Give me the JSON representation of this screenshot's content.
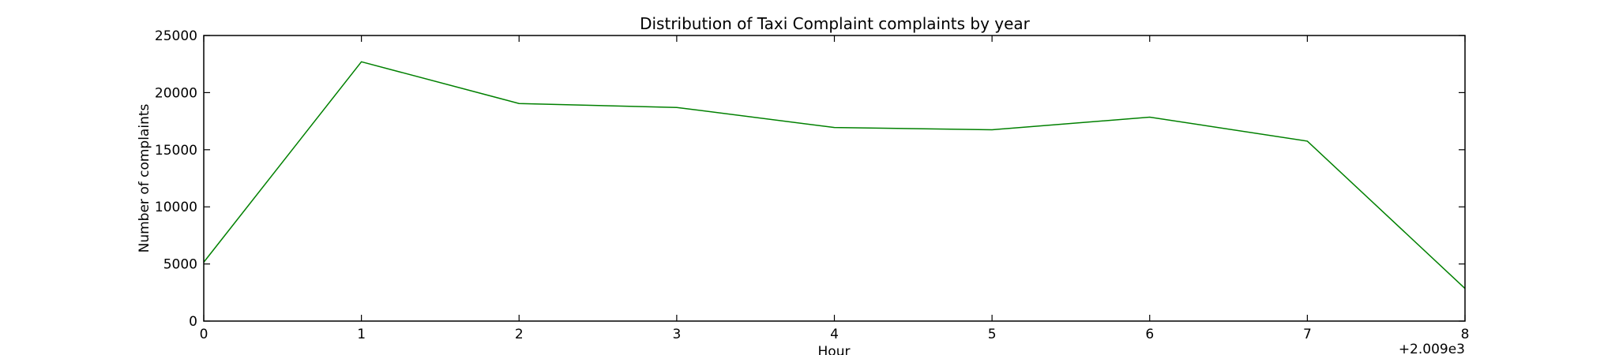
{
  "chart_data": {
    "type": "line",
    "title": "Distribution of  Taxi Complaint complaints by year",
    "xlabel": "Hour",
    "ylabel": "Number of complaints",
    "x_offset_label": "+2.009e3",
    "xlim": [
      0,
      8
    ],
    "ylim": [
      0,
      25000
    ],
    "x_ticks": [
      0,
      1,
      2,
      3,
      4,
      5,
      6,
      7,
      8
    ],
    "y_ticks": [
      0,
      5000,
      10000,
      15000,
      20000,
      25000
    ],
    "grid": false,
    "series": [
      {
        "color": "#008000",
        "x": [
          0,
          1,
          2,
          3,
          4,
          5,
          6,
          7,
          8
        ],
        "y": [
          5150,
          22700,
          19050,
          18700,
          16950,
          16750,
          17850,
          15750,
          2850
        ]
      }
    ]
  }
}
